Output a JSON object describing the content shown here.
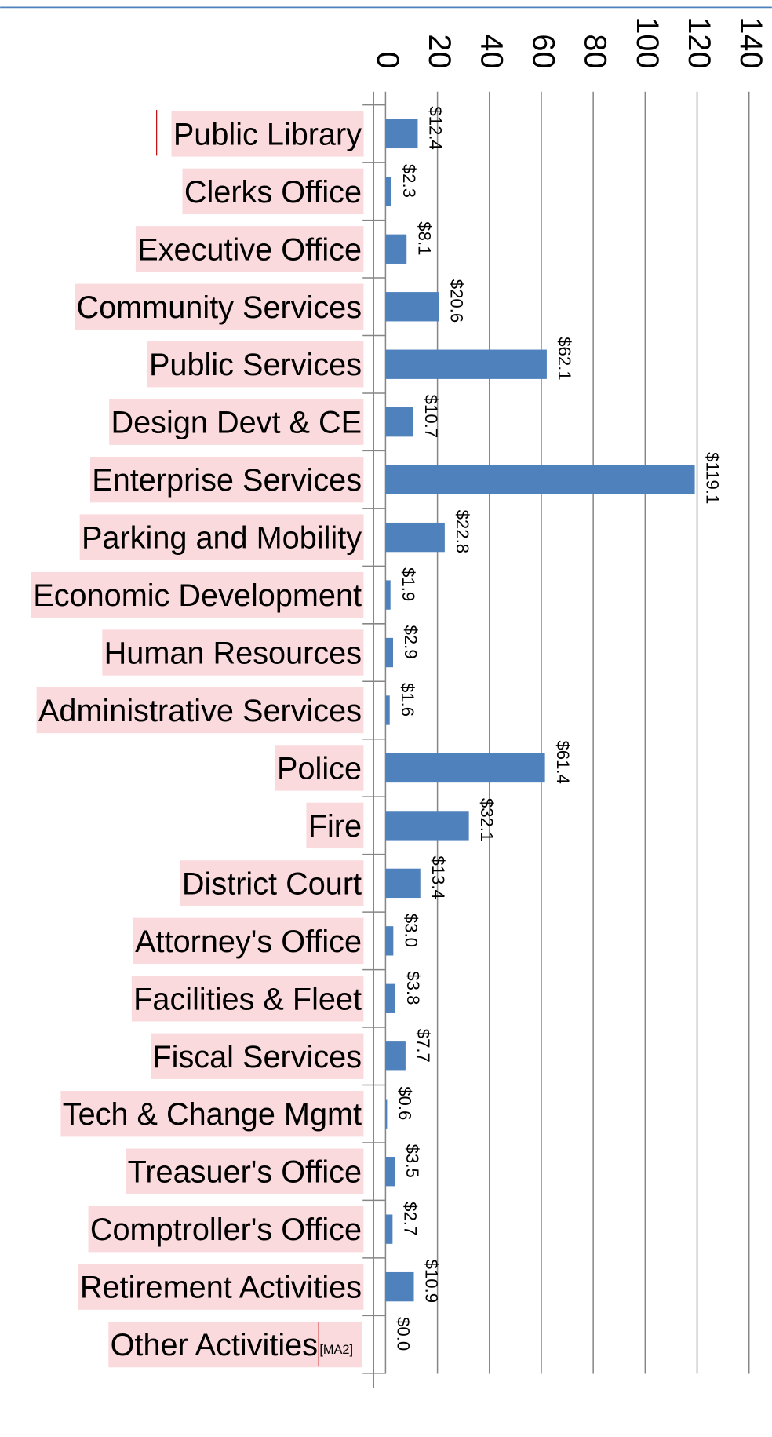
{
  "chart_data": {
    "type": "bar",
    "orientation": "horizontal",
    "categories": [
      "Public Library",
      "Clerks Office",
      "Executive Office",
      "Community Services",
      "Public Services",
      "Design Devt & CE",
      "Enterprise Services",
      "Parking and Mobility",
      "Economic Development",
      "Human Resources",
      "Administrative Services",
      "Police",
      "Fire",
      "District Court",
      "Attorney's Office",
      "Facilities & Fleet",
      "Fiscal Services",
      "Tech & Change Mgmt",
      "Treasuer's Office",
      "Comptroller's Office",
      "Retirement Activities",
      "Other Activities"
    ],
    "values": [
      12.4,
      2.3,
      8.1,
      20.6,
      62.1,
      10.7,
      119.1,
      22.8,
      1.9,
      2.9,
      1.6,
      61.4,
      32.1,
      13.4,
      3.0,
      3.8,
      7.7,
      0.6,
      3.5,
      2.7,
      10.9,
      0.0
    ],
    "value_labels": [
      "$12.4",
      "$2.3",
      "$8.1",
      "$20.6",
      "$62.1",
      "$10.7",
      "$119.1",
      "$22.8",
      "$1.9",
      "$2.9",
      "$1.6",
      "$61.4",
      "$32.1",
      "$13.4",
      "$3.0",
      "$3.8",
      "$7.7",
      "$0.6",
      "$3.5",
      "$2.7",
      "$10.9",
      "$0.0"
    ],
    "color": "#4f81bd",
    "xlim": [
      0,
      140
    ],
    "xticks": [
      0,
      20,
      40,
      60,
      80,
      100,
      120,
      140
    ],
    "grid": true,
    "annotation": "[MA2]"
  }
}
